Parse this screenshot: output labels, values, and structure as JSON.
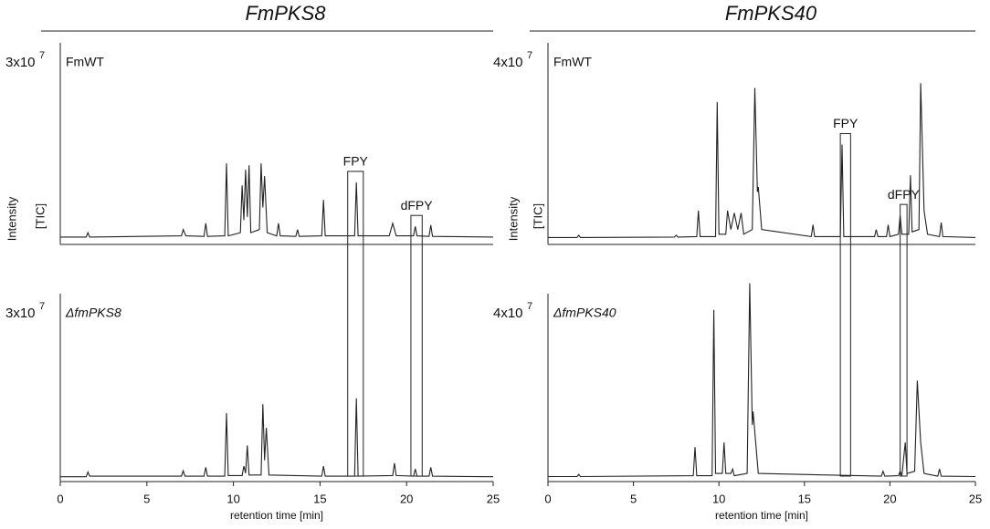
{
  "chart_data": [
    {
      "type": "line",
      "title": "FmPKS8",
      "xlabel": "retention time [min]",
      "ylabel": "Intensity",
      "ylabel2": "[TIC]",
      "xlim": [
        0,
        25
      ],
      "xticks": [
        0,
        5,
        10,
        15,
        20,
        25
      ],
      "series": [
        {
          "name": "FmWT",
          "scale_label": "3x10",
          "scale_exponent": "7",
          "ylim": [
            0,
            3
          ],
          "color": "#222222",
          "x": [
            0,
            1.5,
            1.6,
            1.7,
            7.0,
            7.1,
            7.25,
            8.3,
            8.4,
            8.5,
            9.5,
            9.6,
            9.7,
            10.4,
            10.5,
            10.6,
            10.7,
            10.8,
            10.9,
            11.0,
            11.5,
            11.6,
            11.7,
            11.8,
            11.95,
            12.5,
            12.6,
            12.7,
            13.6,
            13.7,
            13.8,
            15.1,
            15.2,
            15.3,
            17.0,
            17.1,
            17.2,
            19.0,
            19.2,
            19.4,
            20.4,
            20.5,
            20.6,
            21.3,
            21.4,
            21.5,
            25
          ],
          "values": [
            0.03,
            0.03,
            0.1,
            0.03,
            0.05,
            0.15,
            0.05,
            0.04,
            0.25,
            0.04,
            0.05,
            1.2,
            0.05,
            0.1,
            0.85,
            0.3,
            1.1,
            0.35,
            1.17,
            0.1,
            0.15,
            1.2,
            0.5,
            1.0,
            0.1,
            0.05,
            0.25,
            0.05,
            0.04,
            0.15,
            0.04,
            0.05,
            0.62,
            0.05,
            0.05,
            0.9,
            0.05,
            0.05,
            0.25,
            0.05,
            0.05,
            0.2,
            0.05,
            0.04,
            0.22,
            0.04,
            0.03
          ]
        },
        {
          "name": "ΔfmPKS8",
          "scale_label": "3x10",
          "scale_exponent": "7",
          "ylim": [
            0,
            3
          ],
          "color": "#222222",
          "x": [
            0,
            1.5,
            1.6,
            1.7,
            7.0,
            7.1,
            7.2,
            8.3,
            8.4,
            8.5,
            9.5,
            9.6,
            9.7,
            10.5,
            10.6,
            10.7,
            10.8,
            10.9,
            11.6,
            11.7,
            11.8,
            11.9,
            12.05,
            15.1,
            15.2,
            15.3,
            17.0,
            17.1,
            17.2,
            19.2,
            19.3,
            19.4,
            20.4,
            20.5,
            20.6,
            21.3,
            21.4,
            21.5,
            25
          ],
          "values": [
            0.02,
            0.02,
            0.1,
            0.03,
            0.03,
            0.12,
            0.03,
            0.03,
            0.18,
            0.03,
            0.03,
            1.1,
            0.04,
            0.04,
            0.2,
            0.08,
            0.55,
            0.05,
            0.05,
            1.25,
            0.3,
            0.85,
            0.05,
            0.03,
            0.2,
            0.03,
            0.03,
            1.35,
            0.03,
            0.04,
            0.25,
            0.04,
            0.03,
            0.15,
            0.03,
            0.03,
            0.18,
            0.03,
            0.02
          ]
        }
      ],
      "annotations": [
        {
          "label": "FPY",
          "xrange": [
            16.6,
            17.5
          ]
        },
        {
          "label": "dFPY",
          "xrange": [
            20.25,
            20.9
          ]
        }
      ]
    },
    {
      "type": "line",
      "title": "FmPKS40",
      "xlabel": "retention time [min]",
      "ylabel": "Intensity",
      "ylabel2": "[TIC]",
      "xlim": [
        0,
        25
      ],
      "xticks": [
        0,
        5,
        10,
        15,
        20,
        25
      ],
      "series": [
        {
          "name": "FmWT",
          "scale_label": "4x10",
          "scale_exponent": "7",
          "ylim": [
            0,
            4
          ],
          "color": "#222222",
          "x": [
            0,
            1.7,
            1.8,
            1.9,
            7.4,
            7.5,
            7.6,
            8.7,
            8.8,
            8.9,
            9.8,
            9.9,
            10.0,
            10.4,
            10.5,
            10.7,
            10.9,
            11.1,
            11.3,
            11.45,
            11.95,
            12.1,
            12.25,
            12.3,
            12.5,
            15.4,
            15.5,
            15.6,
            17.1,
            17.2,
            17.3,
            19.1,
            19.2,
            19.3,
            19.8,
            19.9,
            20.0,
            20.5,
            20.6,
            20.7,
            21.1,
            21.2,
            21.3,
            21.7,
            21.8,
            22.0,
            22.2,
            22.9,
            23.0,
            23.1,
            25
          ],
          "values": [
            0.03,
            0.03,
            0.08,
            0.03,
            0.04,
            0.08,
            0.04,
            0.05,
            0.6,
            0.05,
            0.05,
            2.9,
            0.1,
            0.1,
            0.6,
            0.2,
            0.55,
            0.2,
            0.55,
            0.1,
            0.2,
            3.2,
            1.0,
            1.1,
            0.2,
            0.05,
            0.3,
            0.05,
            0.05,
            2.0,
            0.05,
            0.05,
            0.2,
            0.05,
            0.05,
            0.3,
            0.05,
            0.1,
            0.5,
            0.1,
            0.1,
            1.35,
            0.15,
            0.2,
            3.3,
            0.6,
            0.1,
            0.05,
            0.35,
            0.05,
            0.03
          ]
        },
        {
          "name": "ΔfmPKS40",
          "scale_label": "4x10",
          "scale_exponent": "7",
          "ylim": [
            0,
            4
          ],
          "color": "#222222",
          "x": [
            0,
            1.7,
            1.8,
            1.9,
            8.5,
            8.6,
            8.7,
            9.6,
            9.7,
            9.8,
            10.2,
            10.3,
            10.4,
            10.7,
            10.8,
            10.9,
            11.65,
            11.8,
            11.95,
            12.0,
            12.3,
            19.5,
            19.6,
            19.7,
            20.5,
            20.6,
            20.7,
            20.9,
            21.0,
            21.45,
            21.6,
            21.8,
            22.0,
            22.8,
            22.9,
            23.0,
            25
          ],
          "values": [
            0.03,
            0.03,
            0.08,
            0.03,
            0.05,
            0.7,
            0.05,
            0.05,
            3.8,
            0.1,
            0.1,
            0.8,
            0.1,
            0.1,
            0.2,
            0.05,
            0.1,
            4.4,
            1.2,
            1.5,
            0.1,
            0.04,
            0.15,
            0.04,
            0.05,
            0.15,
            0.05,
            0.8,
            0.1,
            0.15,
            2.2,
            0.8,
            0.1,
            0.04,
            0.2,
            0.04,
            0.03
          ]
        }
      ],
      "annotations": [
        {
          "label": "FPY",
          "xrange": [
            17.1,
            17.7
          ]
        },
        {
          "label": "dFPY",
          "xrange": [
            20.6,
            21.0
          ]
        }
      ]
    }
  ]
}
